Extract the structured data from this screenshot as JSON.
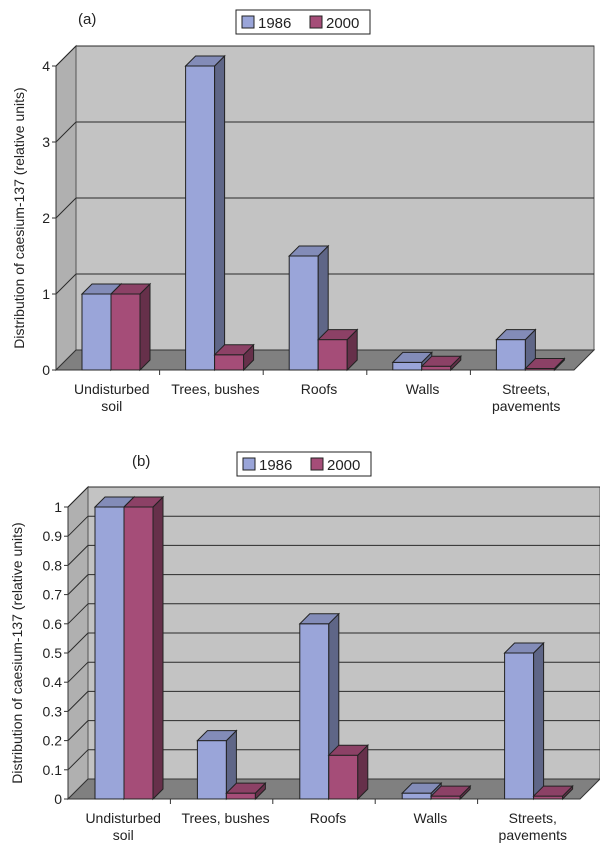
{
  "chart_data": [
    {
      "type": "bar",
      "panel_label": "(a)",
      "ylabel": "Distribution of caesium-137 (relative units)",
      "categories": [
        [
          "Undisturbed",
          "soil"
        ],
        [
          "Trees, bushes"
        ],
        [
          "Roofs"
        ],
        [
          "Walls"
        ],
        [
          "Streets,",
          "pavements"
        ]
      ],
      "series": [
        {
          "name": "1986",
          "values": [
            1.0,
            4.0,
            1.5,
            0.1,
            0.4
          ]
        },
        {
          "name": "2000",
          "values": [
            1.0,
            0.2,
            0.4,
            0.05,
            0.02
          ]
        }
      ],
      "ylim": [
        0,
        4
      ],
      "yticks": [
        "0",
        "1",
        "2",
        "3",
        "4"
      ],
      "grid": true,
      "legend_position": "top"
    },
    {
      "type": "bar",
      "panel_label": "(b)",
      "ylabel": "Distribution of caesium-137 (relative units)",
      "categories": [
        [
          "Undisturbed",
          "soil"
        ],
        [
          "Trees, bushes"
        ],
        [
          "Roofs"
        ],
        [
          "Walls"
        ],
        [
          "Streets,",
          "pavements"
        ]
      ],
      "series": [
        {
          "name": "1986",
          "values": [
            1.0,
            0.2,
            0.6,
            0.02,
            0.5
          ]
        },
        {
          "name": "2000",
          "values": [
            1.0,
            0.02,
            0.15,
            0.01,
            0.01
          ]
        }
      ],
      "ylim": [
        0,
        1
      ],
      "yticks": [
        "0",
        "0.1",
        "0.2",
        "0.3",
        "0.4",
        "0.5",
        "0.6",
        "0.7",
        "0.8",
        "0.9",
        "1"
      ],
      "grid": true,
      "legend_position": "top"
    }
  ],
  "colors": {
    "series_1986": "#9aa5d9",
    "series_2000": "#a54d78",
    "wall": "#c3c3c3",
    "floor": "#808080"
  }
}
